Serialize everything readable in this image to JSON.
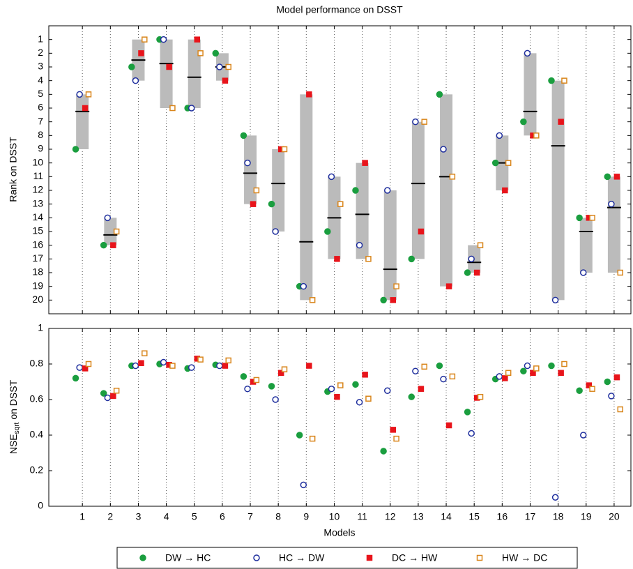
{
  "chart_data": [
    {
      "type": "range-scatter",
      "title": "Model performance on DSST",
      "ylabel": "Rank on DSST",
      "x": [
        1,
        2,
        3,
        4,
        5,
        6,
        7,
        8,
        9,
        10,
        11,
        12,
        13,
        14,
        15,
        16,
        17,
        18,
        19,
        20
      ],
      "xlim": [
        -0.2,
        20.6
      ],
      "ylim": [
        0,
        21
      ],
      "y_inverted": true,
      "yticks": [
        1,
        2,
        3,
        4,
        5,
        6,
        7,
        8,
        9,
        10,
        11,
        12,
        13,
        14,
        15,
        16,
        17,
        18,
        19,
        20
      ],
      "grid": "x",
      "range_color": "#bbbbbb",
      "mean_color": "#000000",
      "means": [
        6.25,
        15.25,
        2.5,
        2.75,
        3.75,
        3,
        10.75,
        11.5,
        15.75,
        14,
        13.75,
        17.75,
        11.5,
        11,
        17.25,
        10,
        6.25,
        8.75,
        15,
        13.25
      ],
      "series": [
        {
          "name": "DW → HC",
          "color": "#1a9e3f",
          "marker": "circle",
          "filled": true,
          "values": [
            9,
            16,
            3,
            1,
            6,
            2,
            8,
            13,
            19,
            15,
            12,
            20,
            17,
            5,
            18,
            10,
            7,
            4,
            14,
            11
          ]
        },
        {
          "name": "HC → DW",
          "color": "#1f2f9e",
          "marker": "circle",
          "filled": false,
          "values": [
            5,
            14,
            4,
            1,
            6,
            3,
            10,
            15,
            19,
            11,
            16,
            12,
            7,
            9,
            17,
            8,
            2,
            20,
            18,
            13
          ]
        },
        {
          "name": "DC → HW",
          "color": "#e8141b",
          "marker": "square",
          "filled": true,
          "values": [
            6,
            16,
            2,
            3,
            1,
            4,
            13,
            9,
            5,
            17,
            10,
            20,
            15,
            19,
            18,
            12,
            8,
            7,
            14,
            11
          ]
        },
        {
          "name": "HW → DC",
          "color": "#d9861c",
          "marker": "square",
          "filled": false,
          "values": [
            5,
            15,
            1,
            6,
            2,
            3,
            12,
            9,
            20,
            13,
            17,
            19,
            7,
            11,
            16,
            10,
            8,
            4,
            14,
            18
          ]
        }
      ],
      "legend": "bottom"
    },
    {
      "type": "scatter",
      "xlabel": "Models",
      "ylabel": {
        "main": "NSE",
        "sub": "sqrt",
        "rest": "on DSST"
      },
      "x": [
        1,
        2,
        3,
        4,
        5,
        6,
        7,
        8,
        9,
        10,
        11,
        12,
        13,
        14,
        15,
        16,
        17,
        18,
        19,
        20
      ],
      "xlim": [
        -0.2,
        20.6
      ],
      "ylim": [
        0,
        1
      ],
      "yticks": [
        0,
        0.2,
        0.4,
        0.6,
        0.8,
        1
      ],
      "grid": "x",
      "series": [
        {
          "color": "#1a9e3f",
          "marker": "circle",
          "filled": true,
          "values": [
            0.72,
            0.635,
            0.79,
            0.8,
            0.775,
            0.795,
            0.73,
            0.675,
            0.4,
            0.645,
            0.685,
            0.31,
            0.615,
            0.79,
            0.53,
            0.715,
            0.76,
            0.79,
            0.65,
            0.7
          ]
        },
        {
          "color": "#1f2f9e",
          "marker": "circle",
          "filled": false,
          "values": [
            0.78,
            0.61,
            0.79,
            0.81,
            0.78,
            0.79,
            0.66,
            0.6,
            0.12,
            0.66,
            0.585,
            0.65,
            0.76,
            0.715,
            0.41,
            0.73,
            0.79,
            0.05,
            0.4,
            0.62
          ]
        },
        {
          "color": "#e8141b",
          "marker": "square",
          "filled": true,
          "values": [
            0.775,
            0.62,
            0.805,
            0.795,
            0.83,
            0.79,
            0.7,
            0.75,
            0.79,
            0.615,
            0.74,
            0.43,
            0.66,
            0.455,
            0.61,
            0.72,
            0.75,
            0.75,
            0.68,
            0.725
          ]
        },
        {
          "color": "#d9861c",
          "marker": "square",
          "filled": false,
          "values": [
            0.8,
            0.65,
            0.86,
            0.79,
            0.825,
            0.82,
            0.71,
            0.77,
            0.38,
            0.68,
            0.605,
            0.38,
            0.785,
            0.73,
            0.615,
            0.75,
            0.775,
            0.8,
            0.66,
            0.545
          ]
        }
      ]
    }
  ]
}
